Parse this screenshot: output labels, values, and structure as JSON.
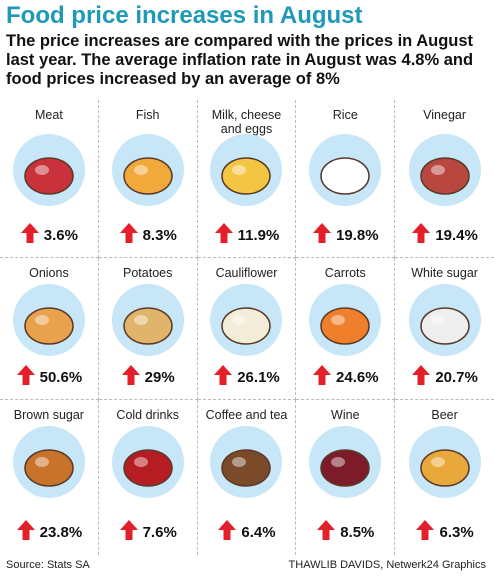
{
  "header": {
    "title": "Food price increases in August",
    "subtitle": "The price increases are compared with the prices in August last year. The average inflation rate in August was 4.8% and food prices increased by an average of 8%"
  },
  "items": [
    {
      "label": "Meat",
      "change": "3.6%"
    },
    {
      "label": "Fish",
      "change": "8.3%"
    },
    {
      "label": "Milk, cheese and eggs",
      "change": "11.9%"
    },
    {
      "label": "Rice",
      "change": "19.8%"
    },
    {
      "label": "Vinegar",
      "change": "19.4%"
    },
    {
      "label": "Onions",
      "change": "50.6%"
    },
    {
      "label": "Potatoes",
      "change": "29%"
    },
    {
      "label": "Cauliflower",
      "change": "26.1%"
    },
    {
      "label": "Carrots",
      "change": "24.6%"
    },
    {
      "label": "White sugar",
      "change": "20.7%"
    },
    {
      "label": "Brown sugar",
      "change": "23.8%"
    },
    {
      "label": "Cold drinks",
      "change": "7.6%"
    },
    {
      "label": "Coffee and tea",
      "change": "6.4%"
    },
    {
      "label": "Wine",
      "change": "8.5%"
    },
    {
      "label": "Beer",
      "change": "6.3%"
    }
  ],
  "footer": {
    "source": "Source: Stats SA",
    "credit": "THAWLIB DAVIDS, Netwerk24 Graphics"
  }
}
